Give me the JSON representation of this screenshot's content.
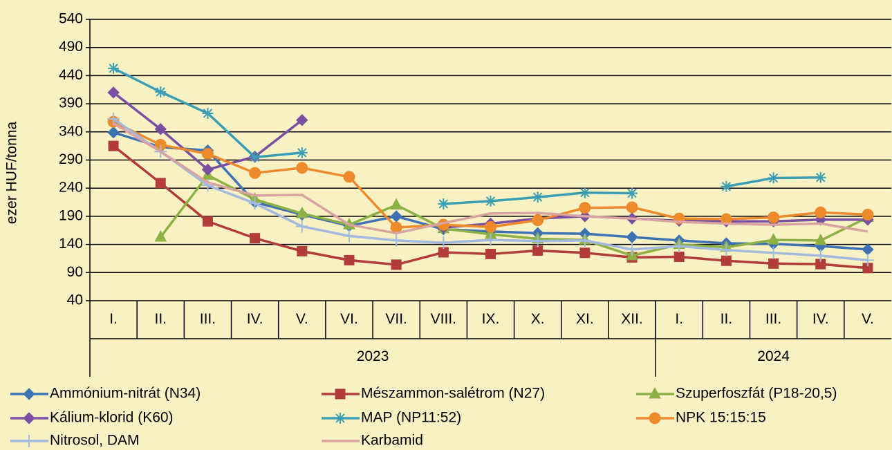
{
  "chart_data": {
    "type": "line",
    "y_label": "ezer HUF/tonna",
    "categories": [
      "I.",
      "II.",
      "III.",
      "IV.",
      "V.",
      "VI.",
      "VII.",
      "VIII.",
      "IX.",
      "X.",
      "XI.",
      "XII.",
      "I.",
      "II.",
      "III.",
      "IV.",
      "V."
    ],
    "category_groups": [
      {
        "name": "2023",
        "count": 12
      },
      {
        "name": "2024",
        "count": 5
      }
    ],
    "ylim": [
      40,
      540
    ],
    "yticks": [
      40,
      90,
      140,
      190,
      240,
      290,
      340,
      390,
      440,
      490,
      540
    ],
    "grid": true,
    "legend": "bottom",
    "series": [
      {
        "name": "Ammónium-nitrát (N34)",
        "color": "#3d72b4",
        "marker": "diamond",
        "values": [
          339,
          313,
          307,
          215,
          193,
          173,
          190,
          167,
          163,
          160,
          159,
          153,
          147,
          142,
          141,
          137,
          131
        ]
      },
      {
        "name": "Mészammon-salétrom (N27)",
        "color": "#b23c3a",
        "marker": "square",
        "values": [
          315,
          249,
          181,
          151,
          128,
          112,
          104,
          126,
          123,
          129,
          125,
          117,
          118,
          111,
          106,
          105,
          98
        ]
      },
      {
        "name": "Szuperfoszfát (P18-20,5)",
        "color": "#8db144",
        "marker": "triangle",
        "values": [
          null,
          153,
          263,
          220,
          195,
          175,
          210,
          168,
          158,
          150,
          148,
          120,
          140,
          135,
          148,
          147,
          188
        ]
      },
      {
        "name": "Kálium-klorid (K60)",
        "color": "#7a4fa1",
        "marker": "diamond",
        "values": [
          410,
          345,
          273,
          296,
          361,
          null,
          null,
          170,
          177,
          186,
          190,
          186,
          182,
          181,
          181,
          184,
          184
        ]
      },
      {
        "name": "MAP (NP11:52)",
        "color": "#3a9fb4",
        "marker": "star",
        "values": [
          453,
          411,
          373,
          295,
          303,
          null,
          null,
          212,
          217,
          224,
          232,
          231,
          null,
          243,
          258,
          259,
          null
        ]
      },
      {
        "name": "NPK 15:15:15",
        "color": "#ed8a2c",
        "marker": "circle",
        "values": [
          358,
          317,
          301,
          267,
          276,
          260,
          170,
          175,
          171,
          183,
          205,
          206,
          186,
          185,
          188,
          197,
          193
        ]
      },
      {
        "name": "Nitrosol, DAM",
        "color": "#a2b9e0",
        "marker": "plus",
        "values": [
          363,
          305,
          245,
          213,
          172,
          155,
          147,
          143,
          148,
          146,
          147,
          131,
          137,
          130,
          125,
          120,
          112
        ]
      },
      {
        "name": "Karbamid",
        "color": "#d9a3a2",
        "marker": "none",
        "values": [
          355,
          305,
          250,
          227,
          228,
          175,
          160,
          178,
          195,
          196,
          190,
          186,
          180,
          177,
          175,
          177,
          163
        ]
      }
    ]
  }
}
